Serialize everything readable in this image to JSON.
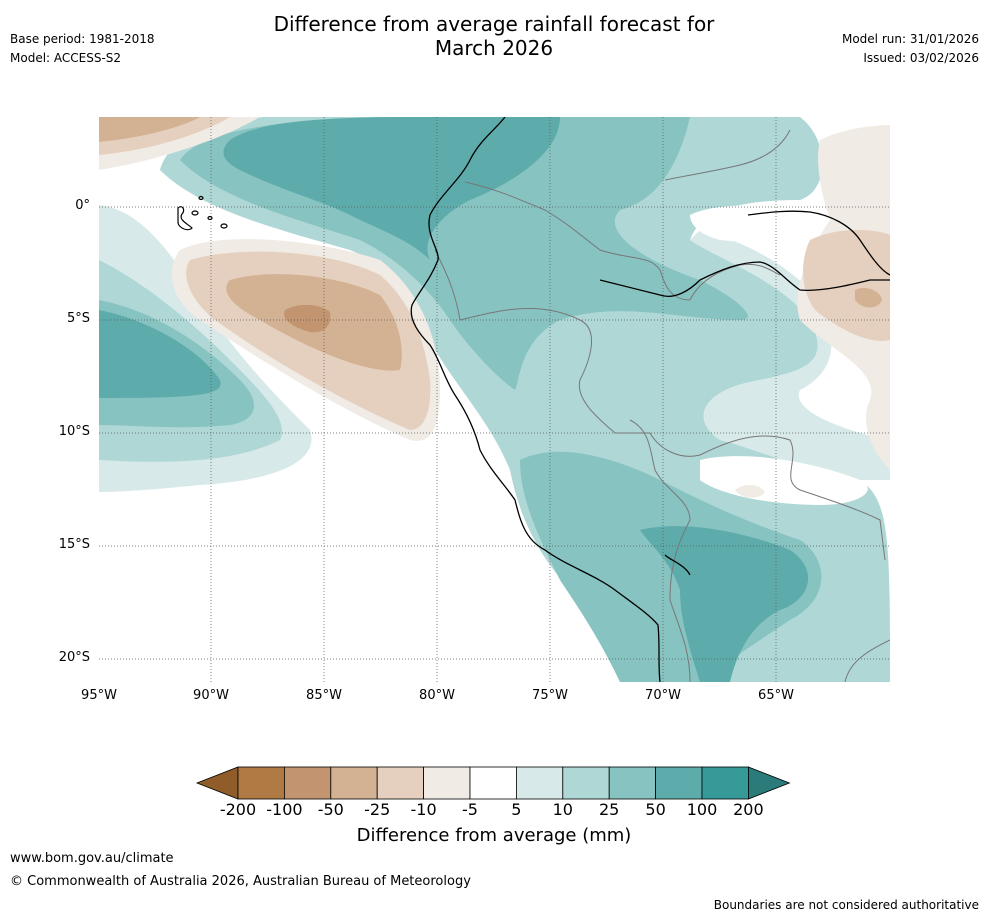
{
  "header": {
    "title_line1": "Difference from average rainfall forecast for",
    "title_line2": "March 2026",
    "base_period": "Base period: 1981-2018",
    "model": "Model: ACCESS-S2",
    "model_run": "Model run: 31/01/2026",
    "issued": "Issued: 03/02/2026"
  },
  "map": {
    "lat_labels": [
      "0°",
      "5°S",
      "10°S",
      "15°S",
      "20°S"
    ],
    "lon_labels": [
      "95°W",
      "90°W",
      "85°W",
      "80°W",
      "75°W",
      "70°W",
      "65°W"
    ]
  },
  "colorbar": {
    "ticks": [
      "-200",
      "-100",
      "-50",
      "-25",
      "-10",
      "-5",
      "5",
      "10",
      "25",
      "50",
      "100",
      "200"
    ],
    "colors": [
      "#905c29",
      "#b07a44",
      "#c29470",
      "#d3b193",
      "#e5d0bf",
      "#f1ebe5",
      "#ffffff",
      "#d7e9e8",
      "#aed7d6",
      "#87c3c1",
      "#5dacab",
      "#359a98",
      "#2a7b7a"
    ],
    "title": "Difference from average (mm)"
  },
  "footer": {
    "website": "www.bom.gov.au/climate",
    "copyright": "© Commonwealth of Australia 2026, Australian Bureau of Meteorology",
    "disclaimer": "Boundaries are not considered authoritative"
  }
}
